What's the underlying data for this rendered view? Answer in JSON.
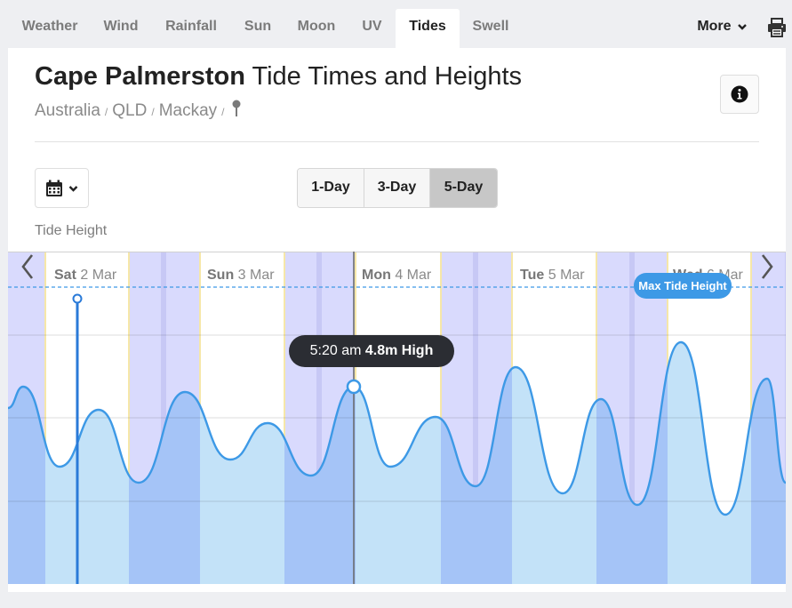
{
  "nav": {
    "tabs": [
      {
        "label": "Weather",
        "active": false
      },
      {
        "label": "Wind",
        "active": false
      },
      {
        "label": "Rainfall",
        "active": false
      },
      {
        "label": "Sun",
        "active": false
      },
      {
        "label": "Moon",
        "active": false
      },
      {
        "label": "UV",
        "active": false
      },
      {
        "label": "Tides",
        "active": true
      },
      {
        "label": "Swell",
        "active": false
      }
    ],
    "more_label": "More",
    "print_icon": "printer-icon"
  },
  "header": {
    "place": "Cape Palmerston",
    "title_rest": "Tide Times and Heights",
    "breadcrumbs": [
      "Australia",
      "QLD",
      "Mackay"
    ],
    "pin_icon": "map-pin-icon",
    "info_icon": "info-icon"
  },
  "controls": {
    "calendar_icon": "calendar-icon",
    "ranges": [
      {
        "label": "1-Day",
        "selected": false
      },
      {
        "label": "3-Day",
        "selected": false
      },
      {
        "label": "5-Day",
        "selected": true
      }
    ],
    "axis_label": "Tide Height"
  },
  "chart": {
    "days": [
      {
        "weekday": "Sat",
        "date": "2 Mar"
      },
      {
        "weekday": "Sun",
        "date": "3 Mar"
      },
      {
        "weekday": "Mon",
        "date": "4 Mar"
      },
      {
        "weekday": "Tue",
        "date": "5 Mar"
      },
      {
        "weekday": "Wed",
        "date": "6 Mar"
      }
    ],
    "tooltip": {
      "time": "5:20 am",
      "value": "4.8m High"
    },
    "max_label": "Max Tide Height",
    "colors": {
      "night": "#d9dafd",
      "day": "#ffffff",
      "tide_day": "#c3e2f8",
      "tide_night": "#a5c4f7",
      "line": "#3d99e6"
    }
  }
}
